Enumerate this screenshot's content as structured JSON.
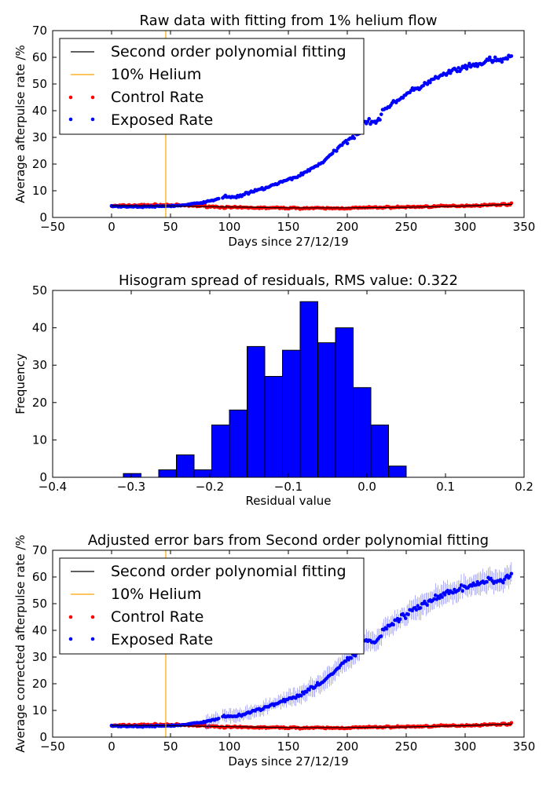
{
  "chart_data": [
    {
      "type": "scatter",
      "title": "Raw data with fitting from 1% helium flow",
      "xlabel": "Days since 27/12/19",
      "ylabel": "Average afterpulse rate /%",
      "xlim": [
        -50,
        350
      ],
      "ylim": [
        0,
        70
      ],
      "xticks": [
        "−50",
        "0",
        "50",
        "100",
        "150",
        "200",
        "250",
        "300",
        "350"
      ],
      "yticks": [
        "0",
        "10",
        "20",
        "30",
        "40",
        "50",
        "60",
        "70"
      ],
      "grid": false,
      "legend_position": "top-left",
      "legend": [
        "Second order polynomial fitting",
        "10% Helium",
        "Control Rate",
        "Exposed Rate"
      ],
      "series": [
        {
          "name": "Exposed Rate",
          "color": "#0000ff",
          "points": [
            [
              0,
              4.2
            ],
            [
              20,
              4.0
            ],
            [
              40,
              4.1
            ],
            [
              60,
              4.5
            ],
            [
              80,
              5.8
            ],
            [
              90,
              6.8
            ],
            [
              95,
              7.9
            ],
            [
              105,
              7.6
            ],
            [
              120,
              9.6
            ],
            [
              140,
              12.5
            ],
            [
              160,
              15.8
            ],
            [
              180,
              21
            ],
            [
              200,
              29
            ],
            [
              210,
              32
            ],
            [
              215,
              36
            ],
            [
              225,
              36
            ],
            [
              235,
              42
            ],
            [
              250,
              46
            ],
            [
              270,
              51
            ],
            [
              290,
              55
            ],
            [
              310,
              57
            ],
            [
              320,
              59
            ],
            [
              330,
              58.5
            ],
            [
              340,
              61
            ]
          ]
        },
        {
          "name": "Control Rate",
          "color": "#ff0000",
          "points": [
            [
              0,
              4.3
            ],
            [
              25,
              4.6
            ],
            [
              46,
              4.7
            ],
            [
              60,
              4.5
            ],
            [
              80,
              4.2
            ],
            [
              100,
              3.7
            ],
            [
              130,
              3.6
            ],
            [
              160,
              3.5
            ],
            [
              190,
              3.4
            ],
            [
              220,
              3.7
            ],
            [
              250,
              3.9
            ],
            [
              280,
              4.2
            ],
            [
              310,
              4.5
            ],
            [
              340,
              5.0
            ]
          ]
        },
        {
          "name": "Second order polynomial fitting",
          "color": "#000000",
          "points": [
            [
              0,
              4.4
            ],
            [
              50,
              4.3
            ],
            [
              100,
              3.9
            ],
            [
              150,
              3.6
            ],
            [
              200,
              3.6
            ],
            [
              250,
              3.8
            ],
            [
              300,
              4.3
            ],
            [
              340,
              4.9
            ]
          ]
        }
      ],
      "vline": {
        "name": "10% Helium",
        "x": 46,
        "color": "#ffa500"
      }
    },
    {
      "type": "bar",
      "title": "Hisogram spread of residuals, RMS value: 0.322",
      "xlabel": "Residual value",
      "ylabel": "Frequency",
      "xlim": [
        -0.4,
        0.2
      ],
      "ylim": [
        0,
        50
      ],
      "xticks": [
        "−0.4",
        "−0.3",
        "−0.2",
        "−0.1",
        "0.0",
        "0.1",
        "0.2"
      ],
      "yticks": [
        "0",
        "10",
        "20",
        "30",
        "40",
        "50"
      ],
      "bar_color": "#0000ff",
      "bins": [
        [
          -0.31,
          -0.2875,
          1
        ],
        [
          -0.2875,
          -0.265,
          0
        ],
        [
          -0.265,
          -0.2425,
          2
        ],
        [
          -0.2425,
          -0.22,
          6
        ],
        [
          -0.22,
          -0.1975,
          2
        ],
        [
          -0.1975,
          -0.175,
          14
        ],
        [
          -0.175,
          -0.1525,
          18
        ],
        [
          -0.1525,
          -0.13,
          35
        ],
        [
          -0.13,
          -0.1075,
          27
        ],
        [
          -0.1075,
          -0.085,
          34
        ],
        [
          -0.085,
          -0.0625,
          47
        ],
        [
          -0.0625,
          -0.04,
          36
        ],
        [
          -0.04,
          -0.0175,
          40
        ],
        [
          -0.0175,
          0.005,
          24
        ],
        [
          0.005,
          0.0275,
          14
        ],
        [
          0.0275,
          0.05,
          3
        ]
      ]
    },
    {
      "type": "scatter",
      "title": "Adjusted error bars from Second order polynomial fitting",
      "xlabel": "Days since 27/12/19",
      "ylabel": "Average corrected afterpulse rate /%",
      "xlim": [
        -50,
        350
      ],
      "ylim": [
        0,
        70
      ],
      "xticks": [
        "−50",
        "0",
        "50",
        "100",
        "150",
        "200",
        "250",
        "300",
        "350"
      ],
      "yticks": [
        "0",
        "10",
        "20",
        "30",
        "40",
        "50",
        "60",
        "70"
      ],
      "grid": false,
      "legend_position": "top-left",
      "legend": [
        "Second order polynomial fitting",
        "10% Helium",
        "Control Rate",
        "Exposed Rate"
      ],
      "series": [
        {
          "name": "Exposed Rate",
          "color": "#0000ff",
          "points": [
            [
              0,
              4.2
            ],
            [
              20,
              4.0
            ],
            [
              40,
              4.1
            ],
            [
              60,
              4.5
            ],
            [
              80,
              5.8
            ],
            [
              90,
              6.8
            ],
            [
              95,
              7.9
            ],
            [
              105,
              7.6
            ],
            [
              120,
              9.6
            ],
            [
              140,
              12.5
            ],
            [
              160,
              15.8
            ],
            [
              180,
              21
            ],
            [
              200,
              29
            ],
            [
              210,
              32
            ],
            [
              215,
              36
            ],
            [
              225,
              36
            ],
            [
              235,
              42
            ],
            [
              250,
              46
            ],
            [
              270,
              51
            ],
            [
              290,
              55
            ],
            [
              310,
              57
            ],
            [
              320,
              59
            ],
            [
              330,
              58.5
            ],
            [
              340,
              61
            ]
          ],
          "error_bars": true
        },
        {
          "name": "Control Rate",
          "color": "#ff0000",
          "points": [
            [
              0,
              4.3
            ],
            [
              25,
              4.6
            ],
            [
              46,
              4.7
            ],
            [
              60,
              4.5
            ],
            [
              80,
              4.2
            ],
            [
              100,
              3.7
            ],
            [
              130,
              3.6
            ],
            [
              160,
              3.5
            ],
            [
              190,
              3.4
            ],
            [
              220,
              3.7
            ],
            [
              250,
              3.9
            ],
            [
              280,
              4.2
            ],
            [
              310,
              4.5
            ],
            [
              340,
              5.0
            ]
          ]
        },
        {
          "name": "Second order polynomial fitting",
          "color": "#000000",
          "points": [
            [
              0,
              4.4
            ],
            [
              50,
              4.3
            ],
            [
              100,
              3.9
            ],
            [
              150,
              3.6
            ],
            [
              200,
              3.6
            ],
            [
              250,
              3.8
            ],
            [
              300,
              4.3
            ],
            [
              340,
              4.9
            ]
          ]
        }
      ],
      "vline": {
        "name": "10% Helium",
        "x": 46,
        "color": "#ffa500"
      }
    }
  ]
}
